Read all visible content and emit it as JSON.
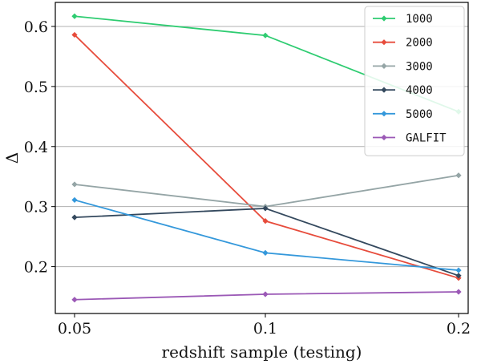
{
  "chart_data": {
    "type": "line",
    "xlabel": "redshift sample (testing)",
    "ylabel": "Δ",
    "x": [
      0.05,
      0.1,
      0.2
    ],
    "x_tick_labels": [
      "0.05",
      "0.1",
      "0.2"
    ],
    "y_ticks": [
      0.2,
      0.3,
      0.4,
      0.5,
      0.6
    ],
    "y_tick_labels": [
      "0.2",
      "0.3",
      "0.4",
      "0.5",
      "0.6"
    ],
    "ylim": [
      0.122,
      0.64
    ],
    "grid": "horizontal",
    "legend_position": "top-right",
    "series": [
      {
        "name": "1000",
        "color": "#2ecc71",
        "values": [
          0.617,
          0.585,
          0.458
        ]
      },
      {
        "name": "2000",
        "color": "#e74c3c",
        "values": [
          0.586,
          0.276,
          0.181
        ]
      },
      {
        "name": "3000",
        "color": "#95a5a6",
        "values": [
          0.337,
          0.3,
          0.352
        ]
      },
      {
        "name": "4000",
        "color": "#34495e",
        "values": [
          0.282,
          0.297,
          0.185
        ]
      },
      {
        "name": "5000",
        "color": "#3498db",
        "values": [
          0.311,
          0.223,
          0.194
        ]
      },
      {
        "name": "GALFIT",
        "color": "#9b59b6",
        "values": [
          0.145,
          0.154,
          0.158
        ]
      }
    ]
  }
}
